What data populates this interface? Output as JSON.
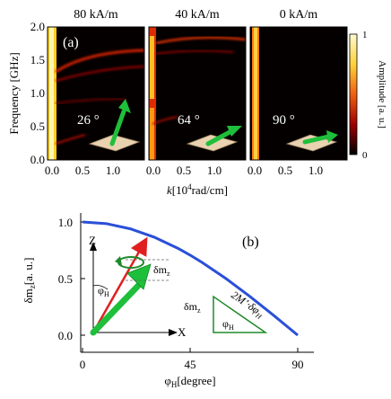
{
  "panel_a": {
    "label": "(a)",
    "field_titles": [
      "80 kA/m",
      "40 kA/m",
      "0 kA/m"
    ],
    "angle_labels": [
      "26 °",
      "64 °",
      "90 °"
    ],
    "ylabel": "Frequency [GHz]",
    "yticks": [
      "0.0",
      "0.5",
      "1.0",
      "1.5",
      "2.0"
    ],
    "xticks": [
      "0.0",
      "0.5",
      "1.0"
    ],
    "xlabel_k": "k",
    "xlabel_rest": "[10",
    "xlabel_sup": "4",
    "xlabel_unit": "rad/cm]",
    "colorbar_label": "Amplitude [a. u.]",
    "colorbar_ticks": [
      "1",
      "0"
    ]
  },
  "panel_b": {
    "label": "(b)",
    "ylabel_main": "δm",
    "ylabel_sub": "z",
    "ylabel_unit": "[a. u.]",
    "yticks": [
      "1.0",
      "0.5",
      "0.0"
    ],
    "xticks": [
      "0",
      "45",
      "90"
    ],
    "xlabel_main": "φ",
    "xlabel_sub": "H",
    "xlabel_unit": "[degree]",
    "axis_z": "Z",
    "axis_x": "X",
    "phi_main": "φ",
    "phi_sub": "H",
    "dmz_main": "δm",
    "dmz_sub": "z",
    "tri_dmz_main": "δm",
    "tri_dmz_sub": "z",
    "tri_phi_main": "φ",
    "tri_phi_sub": "H",
    "tri_hyp": "2M’·δφ",
    "tri_hyp_sub": "H"
  },
  "chart_data": [
    {
      "type": "heatmap",
      "panels": [
        "80 kA/m",
        "40 kA/m",
        "0 kA/m"
      ],
      "xlabel": "k [10^4 rad/cm]",
      "ylabel": "Frequency [GHz]",
      "xlim": [
        0,
        1.6
      ],
      "ylim": [
        0,
        2.0
      ],
      "colorbar": {
        "label": "Amplitude [a. u.]",
        "range": [
          0,
          1
        ]
      }
    },
    {
      "type": "line",
      "x": [
        0,
        10,
        20,
        30,
        40,
        45,
        50,
        60,
        70,
        80,
        90
      ],
      "series": [
        {
          "values": [
            1.0,
            0.985,
            0.94,
            0.866,
            0.766,
            0.707,
            0.643,
            0.5,
            0.342,
            0.174,
            0.0
          ]
        }
      ],
      "xlabel": "φH [degree]",
      "ylabel": "δmz [a. u.]",
      "xlim": [
        0,
        90
      ],
      "ylim": [
        0,
        1.0
      ],
      "color": "#2a4fd8"
    }
  ]
}
